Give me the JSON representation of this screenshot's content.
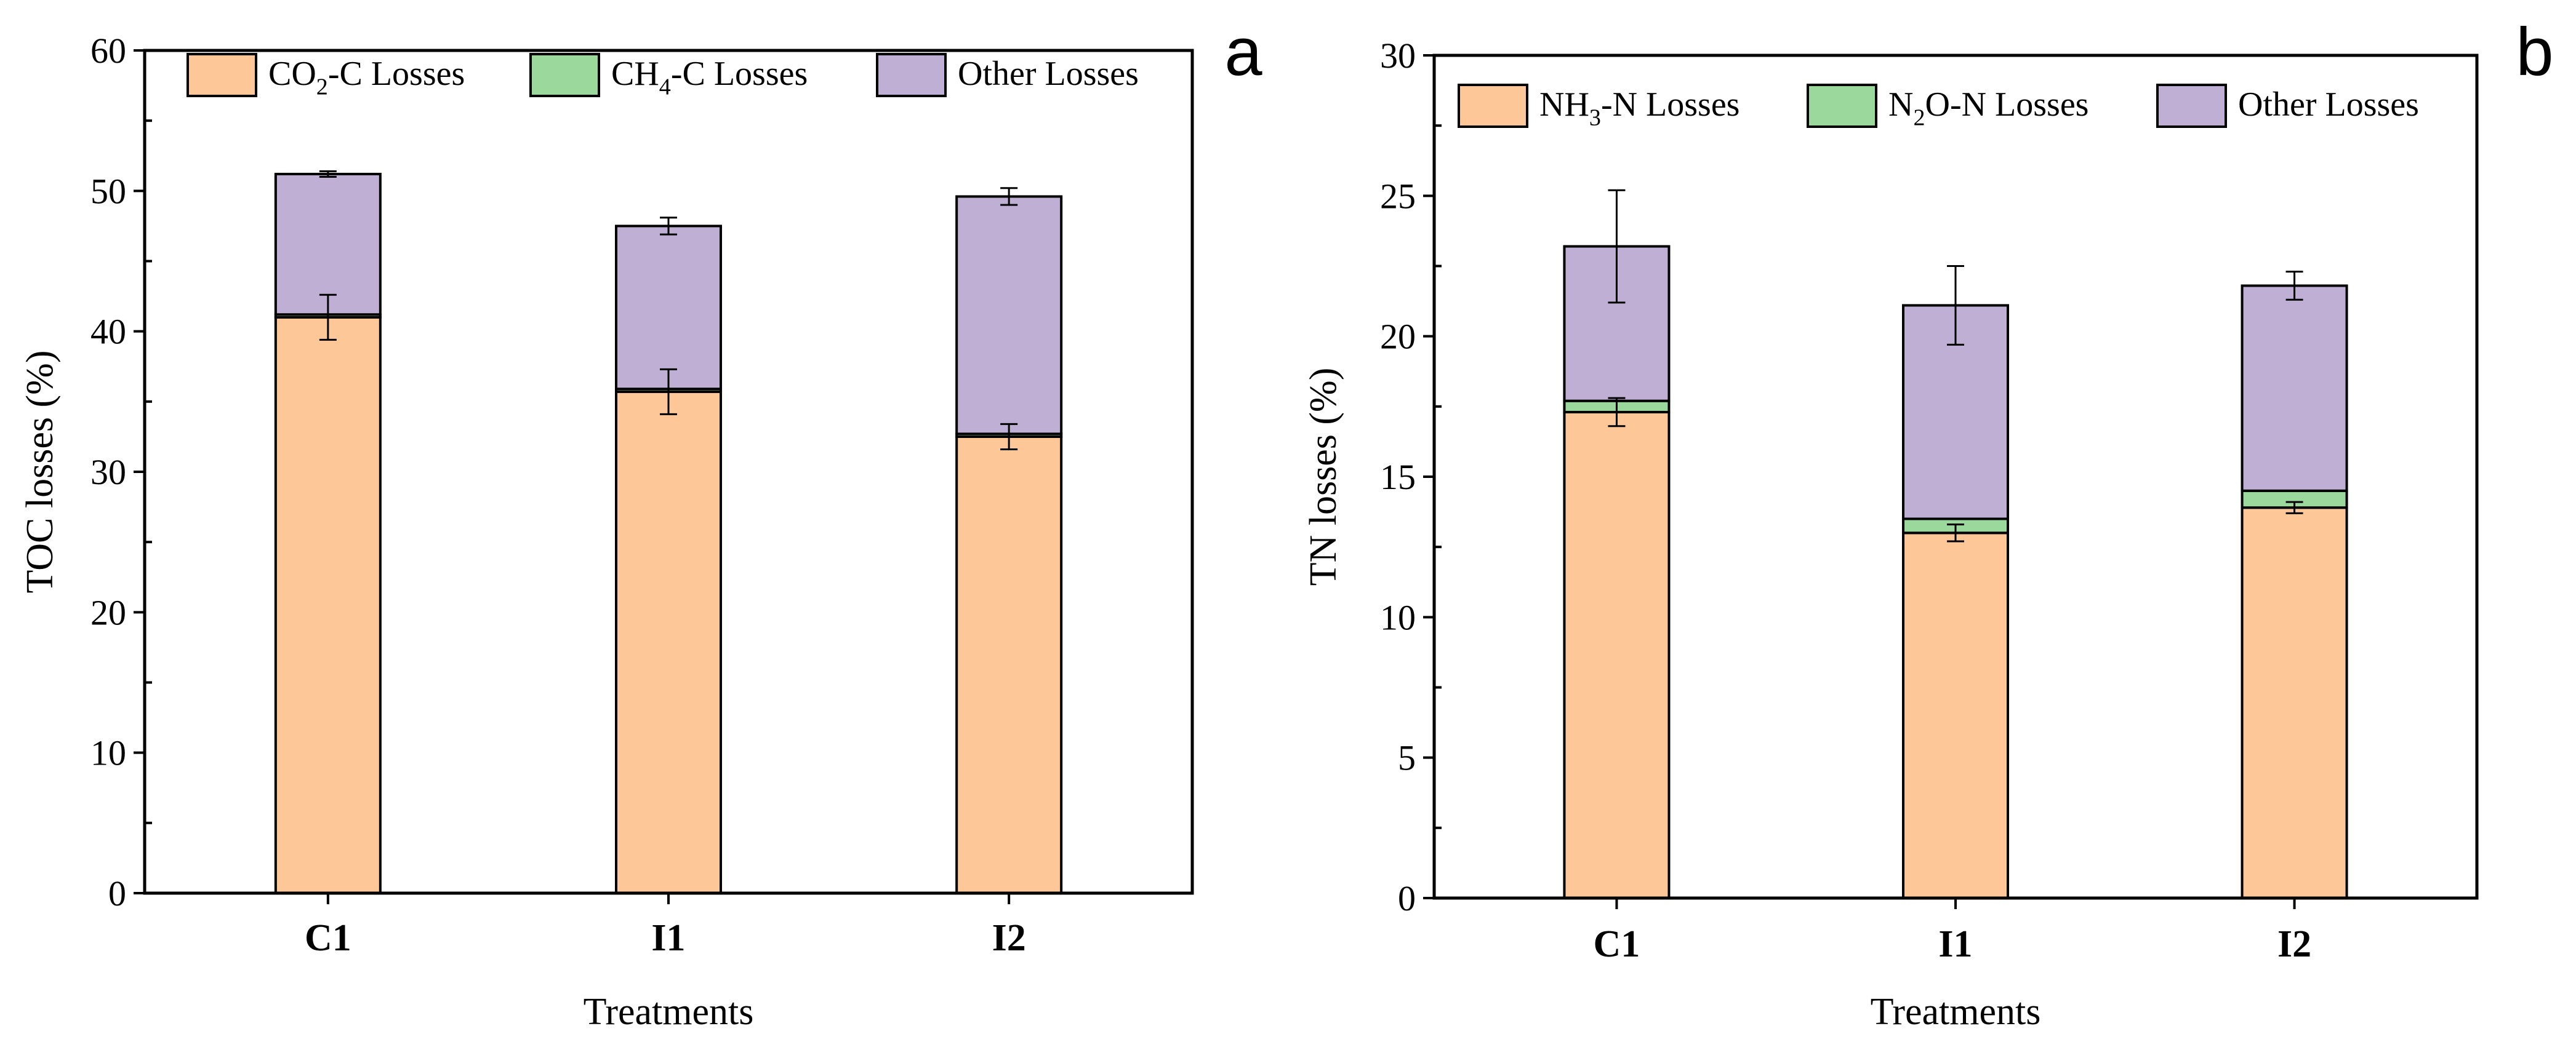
{
  "colors": {
    "co2": "#fdc797",
    "ch4": "#9ad89b",
    "nh3": "#fdc797",
    "n2o": "#9ad89b",
    "other": "#bfafd4",
    "edge": "#000000"
  },
  "chart_data": [
    {
      "type": "bar",
      "stacked": true,
      "panel_label": "a",
      "title": "",
      "xlabel": "Treatments",
      "ylabel": "TOC losses (%)",
      "ylim": [
        0,
        60
      ],
      "yticks": [
        0,
        10,
        20,
        30,
        40,
        50,
        60
      ],
      "categories": [
        "C1",
        "I1",
        "I2"
      ],
      "legend_position": "top",
      "series": [
        {
          "name": "CO2-C Losses",
          "label_main": "CO",
          "label_sub": "2",
          "label_rest": "-C Losses",
          "color_key": "co2",
          "values": [
            41.0,
            35.7,
            32.5
          ],
          "errors": [
            1.6,
            1.6,
            0.9
          ]
        },
        {
          "name": "CH4-C Losses",
          "label_main": "CH",
          "label_sub": "4",
          "label_rest": "-C Losses",
          "color_key": "ch4",
          "values": [
            0.2,
            0.2,
            0.2
          ],
          "errors": [
            0,
            0,
            0
          ]
        },
        {
          "name": "Other Losses",
          "label_main": "Other Losses",
          "label_sub": "",
          "label_rest": "",
          "color_key": "other",
          "values": [
            10.0,
            11.6,
            16.9
          ],
          "errors": [
            0.2,
            0.6,
            0.6
          ]
        }
      ]
    },
    {
      "type": "bar",
      "stacked": true,
      "panel_label": "b",
      "title": "",
      "xlabel": "Treatments",
      "ylabel": "TN losses (%)",
      "ylim": [
        0,
        30
      ],
      "yticks": [
        0,
        5,
        10,
        15,
        20,
        25,
        30
      ],
      "categories": [
        "C1",
        "I1",
        "I2"
      ],
      "legend_position": "top",
      "series": [
        {
          "name": "NH3-N Losses",
          "label_main": "NH",
          "label_sub": "3",
          "label_rest": "-N Losses",
          "color_key": "nh3",
          "values": [
            17.3,
            13.0,
            13.9
          ],
          "errors": [
            0.5,
            0.3,
            0.2
          ]
        },
        {
          "name": "N2O-N Losses",
          "label_main": "N",
          "label_sub": "2",
          "label_rest": "O-N Losses",
          "color_key": "n2o",
          "values": [
            0.4,
            0.5,
            0.6
          ],
          "errors": [
            0,
            0,
            0
          ]
        },
        {
          "name": "Other Losses",
          "label_main": "Other Losses",
          "label_sub": "",
          "label_rest": "",
          "color_key": "other",
          "values": [
            5.5,
            7.6,
            7.3
          ],
          "errors": [
            2.0,
            1.4,
            0.5
          ]
        }
      ]
    }
  ]
}
